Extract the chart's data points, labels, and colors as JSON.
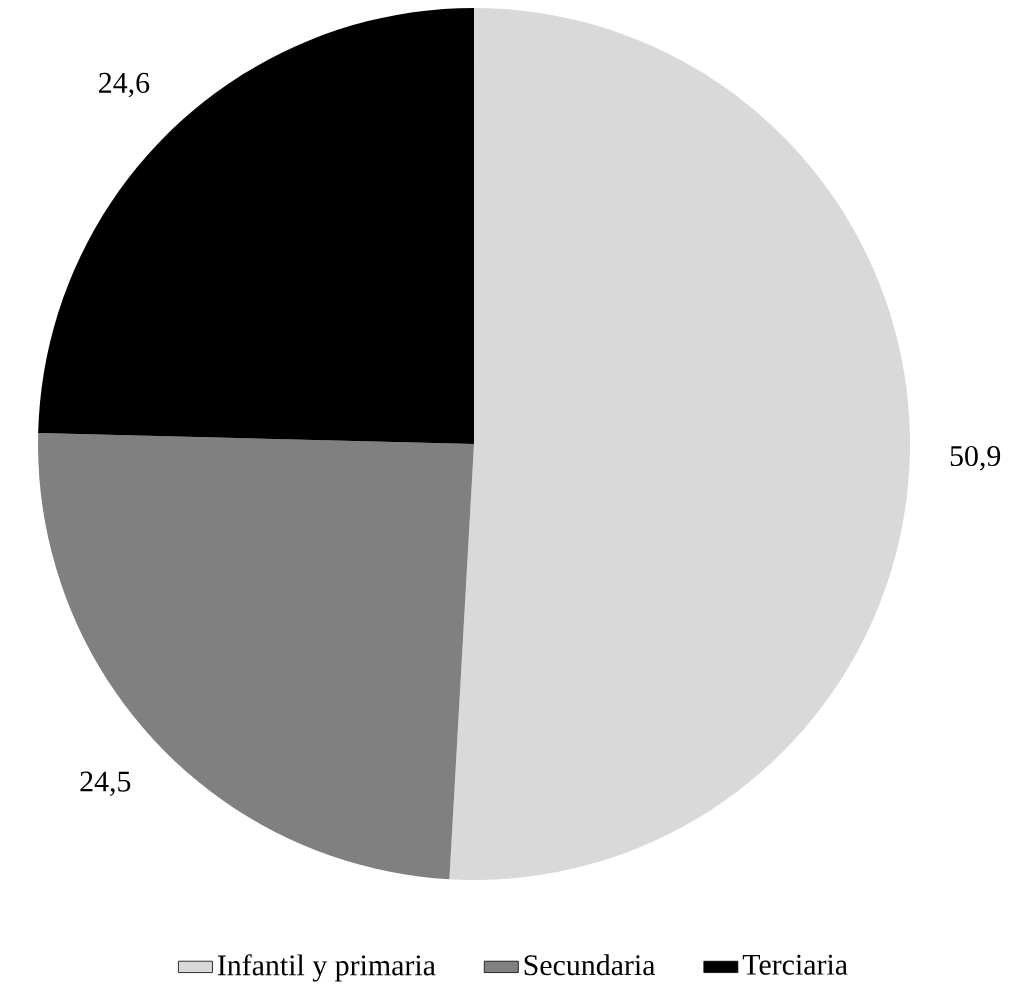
{
  "chart_data": {
    "type": "pie",
    "categories": [
      "Infantil y primaria",
      "Secundaria",
      "Terciaria"
    ],
    "values": [
      50.9,
      24.5,
      24.6
    ],
    "colors": [
      "#d9d9d9",
      "#808080",
      "#000000"
    ],
    "value_labels": [
      "50,9",
      "24,5",
      "24,6"
    ],
    "legend": "bottom"
  }
}
